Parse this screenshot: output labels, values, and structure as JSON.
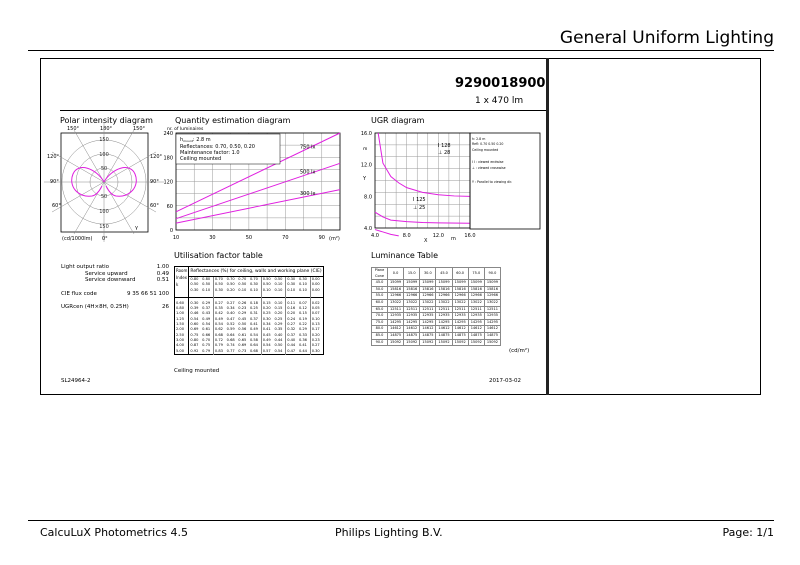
{
  "header": {
    "title": "General Uniform Lighting"
  },
  "product": {
    "number": "9290018900",
    "flux": "1 x 470 lm"
  },
  "polar": {
    "title": "Polar intensity diagram",
    "angles_top": [
      "150°",
      "180°",
      "150°"
    ],
    "angles_side": [
      "120°",
      "90°",
      "60°"
    ],
    "rings": [
      "150",
      "100",
      "50",
      "50",
      "100",
      "150"
    ],
    "unit": "(cd/1000lm)",
    "bottom_angle": "0°",
    "legend": "γ"
  },
  "quantity": {
    "title": "Quantity estimation diagram",
    "ylabel": "nr. of luminaires",
    "info": [
      "h",
      "2.8 m",
      "Reflectances: 0.70, 0.50, 0.20",
      "Maintenance factor: 1.0",
      "Ceiling mounted"
    ],
    "info_sub": "mount",
    "xunit": "(m²)"
  },
  "ugr": {
    "title": "UGR diagram",
    "ylabel": "Y",
    "xlabel": "X",
    "unit": "m",
    "labels": [
      "I 128",
      "⊥ 28",
      "I 125",
      "⊥ 25"
    ],
    "legend": [
      "h",
      "2.8 m",
      "Refl: 0.70 0.50 0.20",
      "Ceiling mounted",
      "I I : viewed endwise",
      "⊥ : viewed crosswise",
      "Y : Parallel to viewing dir."
    ]
  },
  "chart_data": [
    {
      "type": "line",
      "title": "Quantity estimation diagram",
      "ylabel": "nr. of luminaires",
      "xlabel": "(m²)",
      "xlim": [
        10,
        100
      ],
      "ylim": [
        0,
        240
      ],
      "xticks": [
        10,
        30,
        50,
        70,
        90
      ],
      "yticks": [
        0,
        60,
        120,
        180,
        240
      ],
      "grid": true,
      "series": [
        {
          "name": "750 lx",
          "x": [
            10,
            100
          ],
          "y": [
            45,
            240
          ]
        },
        {
          "name": "500 lx",
          "x": [
            10,
            100
          ],
          "y": [
            28,
            165
          ]
        },
        {
          "name": "300 lx",
          "x": [
            10,
            100
          ],
          "y": [
            17,
            100
          ]
        }
      ]
    },
    {
      "type": "line",
      "title": "UGR diagram",
      "xlabel": "X",
      "ylabel": "Y",
      "xlim": [
        4,
        16
      ],
      "ylim": [
        4,
        16
      ],
      "xticks": [
        "4.0",
        "8.0",
        "12.0",
        "16.0"
      ],
      "yticks": [
        "4.0",
        "8.0",
        "12.0",
        "16.0"
      ],
      "grid": true,
      "series": [
        {
          "x": [
            4.4,
            5,
            6,
            7,
            8,
            10,
            12,
            14,
            16
          ],
          "y": [
            16,
            12.2,
            10.5,
            9.7,
            9.1,
            8.5,
            8.2,
            8.05,
            8.0
          ]
        },
        {
          "x": [
            4,
            5,
            6,
            8,
            10,
            12,
            16
          ],
          "y": [
            6,
            5.4,
            5,
            4.8,
            4.7,
            4.65,
            4.6
          ]
        },
        {
          "x": [
            4,
            5,
            6,
            7
          ],
          "y": [
            3.8,
            3.5,
            3.2,
            3
          ]
        }
      ]
    }
  ],
  "stats": {
    "rows": [
      [
        "Light output ratio",
        "1.00"
      ],
      [
        "Service upward",
        "0.49"
      ],
      [
        "Service downward",
        "0.51"
      ],
      [
        "CIE flux code",
        "9 35 66 51 100"
      ],
      [
        "UGRcen (4H×8H, 0.25H)",
        "26"
      ]
    ]
  },
  "uf": {
    "title": "Utilisation factor table",
    "header": "Reflectances (%) for ceiling, walls and working plane (CIE)",
    "room": [
      "Room",
      "Index",
      "k"
    ],
    "refl": [
      [
        "0.80",
        "0.80",
        "0.70",
        "0.70",
        "0.70",
        "0.70",
        "0.50",
        "0.50",
        "0.30",
        "0.30",
        "0.00"
      ],
      [
        "0.50",
        "0.50",
        "0.50",
        "0.50",
        "0.50",
        "0.30",
        "0.50",
        "0.10",
        "0.30",
        "0.10",
        "0.00"
      ],
      [
        "0.30",
        "0.10",
        "0.30",
        "0.20",
        "0.10",
        "0.10",
        "0.10",
        "0.10",
        "0.10",
        "0.10",
        "0.00"
      ]
    ],
    "rows": [
      [
        "0.60",
        "0.30",
        "0.29",
        "0.27",
        "0.27",
        "0.26",
        "0.18",
        "0.15",
        "0.10",
        "0.11",
        "0.07",
        "0.02"
      ],
      [
        "0.80",
        "0.39",
        "0.37",
        "0.35",
        "0.34",
        "0.23",
        "0.25",
        "0.20",
        "0.15",
        "0.16",
        "0.12",
        "0.05"
      ],
      [
        "1.00",
        "0.46",
        "0.43",
        "0.42",
        "0.40",
        "0.29",
        "0.31",
        "0.25",
        "0.20",
        "0.20",
        "0.15",
        "0.07"
      ],
      [
        "1.25",
        "0.54",
        "0.49",
        "0.49",
        "0.47",
        "0.45",
        "0.37",
        "0.30",
        "0.25",
        "0.24",
        "0.19",
        "0.10"
      ],
      [
        "1.50",
        "0.60",
        "0.54",
        "0.54",
        "0.52",
        "0.50",
        "0.41",
        "0.34",
        "0.29",
        "0.27",
        "0.22",
        "0.13"
      ],
      [
        "2.00",
        "0.69",
        "0.61",
        "0.62",
        "0.59",
        "0.56",
        "0.49",
        "0.41",
        "0.35",
        "0.32",
        "0.29",
        "0.17"
      ],
      [
        "2.50",
        "0.75",
        "0.66",
        "0.68",
        "0.64",
        "0.61",
        "0.54",
        "0.45",
        "0.40",
        "0.37",
        "0.33",
        "0.20"
      ],
      [
        "3.00",
        "0.80",
        "0.70",
        "0.72",
        "0.68",
        "0.65",
        "0.58",
        "0.49",
        "0.44",
        "0.40",
        "0.36",
        "0.23"
      ],
      [
        "4.00",
        "0.87",
        "0.75",
        "0.79",
        "0.74",
        "0.69",
        "0.64",
        "0.54",
        "0.50",
        "0.44",
        "0.41",
        "0.27"
      ],
      [
        "5.00",
        "0.92",
        "0.79",
        "0.83",
        "0.77",
        "0.73",
        "0.68",
        "0.57",
        "0.54",
        "0.47",
        "0.44",
        "0.30"
      ]
    ],
    "note": "Ceiling mounted"
  },
  "lum": {
    "title": "Luminance Table",
    "head": [
      "Plane Cone",
      "0.0",
      "15.0",
      "30.0",
      "45.0",
      "60.0",
      "75.0",
      "90.0"
    ],
    "rows": [
      [
        "45.0",
        "15099"
      ],
      [
        "50.0",
        "15816"
      ],
      [
        "55.0",
        "12966"
      ],
      [
        "60.0",
        "13022"
      ],
      [
        "65.0",
        "12511"
      ],
      [
        "70.0",
        "12935"
      ],
      [
        "75.0",
        "14295"
      ],
      [
        "80.0",
        "14612"
      ],
      [
        "85.0",
        "14875"
      ],
      [
        "90.0",
        "15092"
      ]
    ],
    "unit": "(cd/m²)"
  },
  "code": "SL24964-2",
  "date": "2017-03-02",
  "footer": {
    "left": "CalcuLuX Photometrics 4.5",
    "center": "Philips Lighting B.V.",
    "right": "Page: 1/1"
  }
}
